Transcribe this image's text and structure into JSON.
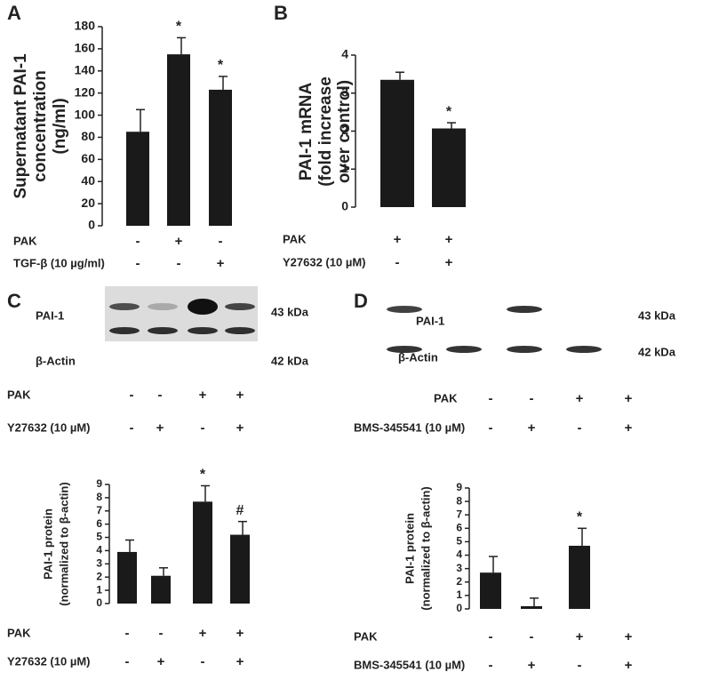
{
  "chart_data": [
    {
      "type": "bar",
      "panel": "A",
      "ylabel": [
        "Supernatant PAI-1",
        "concentration",
        "(ng/ml)"
      ],
      "values": [
        85,
        155,
        123
      ],
      "errors": [
        20,
        15,
        12
      ],
      "color": "#1a1a1a",
      "ylim": [
        0,
        180
      ],
      "yticks": [
        0,
        20,
        40,
        60,
        80,
        100,
        120,
        140,
        160,
        180
      ],
      "annotations": [
        {
          "bar": 1,
          "text": "*"
        },
        {
          "bar": 2,
          "text": "*"
        }
      ],
      "conditions": [
        {
          "label": "PAK",
          "signs": [
            "-",
            "+",
            "-"
          ]
        },
        {
          "label": "TGF-β (10 µg/ml)",
          "signs": [
            "-",
            "-",
            "+"
          ]
        }
      ]
    },
    {
      "type": "bar",
      "panel": "B",
      "ylabel": [
        "PAI-1 mRNA",
        "(fold increase",
        "over control)"
      ],
      "values": [
        3.35,
        2.07
      ],
      "errors": [
        0.2,
        0.15
      ],
      "color": "#1a1a1a",
      "ylim": [
        0,
        4
      ],
      "yticks": [
        0,
        1,
        2,
        3,
        4
      ],
      "annotations": [
        {
          "bar": 1,
          "text": "*"
        }
      ],
      "conditions": [
        {
          "label": "PAK",
          "signs": [
            "+",
            "+"
          ]
        },
        {
          "label": "Y27632 (10 µM)",
          "signs": [
            "-",
            "+"
          ]
        }
      ]
    },
    {
      "type": "bar",
      "ylabel": [
        "PAI-1 protein",
        "(normalized to β-actin)"
      ],
      "values": [
        3.9,
        2.1,
        7.7,
        5.2
      ],
      "errors": [
        0.9,
        0.6,
        1.2,
        1.0
      ],
      "color": "#1a1a1a",
      "ylim": [
        0,
        9
      ],
      "yticks": [
        0,
        1,
        2,
        3,
        4,
        5,
        6,
        7,
        8,
        9
      ],
      "annotations": [
        {
          "bar": 2,
          "text": "*"
        },
        {
          "bar": 3,
          "text": "#"
        }
      ],
      "conditions": [
        {
          "label": "PAK",
          "signs": [
            "-",
            "-",
            "+",
            "+"
          ]
        },
        {
          "label": "Y27632 (10 µM)",
          "signs": [
            "-",
            "+",
            "-",
            "+"
          ]
        }
      ]
    },
    {
      "type": "bar",
      "ylabel": [
        "PAI-1 protein",
        "(normalized to β-actin)"
      ],
      "values": [
        2.7,
        0.2,
        4.7,
        null
      ],
      "errors": [
        1.2,
        0.6,
        1.3,
        null
      ],
      "color": "#1a1a1a",
      "ylim": [
        0,
        9
      ],
      "yticks": [
        0,
        1,
        2,
        3,
        4,
        5,
        6,
        7,
        8,
        9
      ],
      "annotations": [
        {
          "bar": 2,
          "text": "*"
        }
      ],
      "conditions": [
        {
          "label": "PAK",
          "signs": [
            "-",
            "-",
            "+",
            "+"
          ]
        },
        {
          "label": "BMS-345541 (10 µM)",
          "signs": [
            "-",
            "+",
            "-",
            "+"
          ]
        }
      ]
    }
  ],
  "blots": [
    {
      "panel": "C",
      "bands": [
        "PAI-1",
        "β-Actin"
      ],
      "sizes": [
        "43 kDa",
        "42 kDa"
      ],
      "conditions": [
        {
          "label": "PAK",
          "signs": [
            "-",
            "-",
            "+",
            "+"
          ]
        },
        {
          "label": "Y27632 (10 µM)",
          "signs": [
            "-",
            "+",
            "-",
            "+"
          ]
        }
      ]
    },
    {
      "panel": "D",
      "bands": [
        "PAI-1",
        "β-Actin"
      ],
      "sizes": [
        "43 kDa",
        "42 kDa"
      ],
      "conditions": [
        {
          "label": "PAK",
          "signs": [
            "-",
            "-",
            "+",
            "+"
          ]
        },
        {
          "label": "BMS-345541 (10 µM)",
          "signs": [
            "-",
            "+",
            "-",
            "+"
          ]
        }
      ]
    }
  ]
}
